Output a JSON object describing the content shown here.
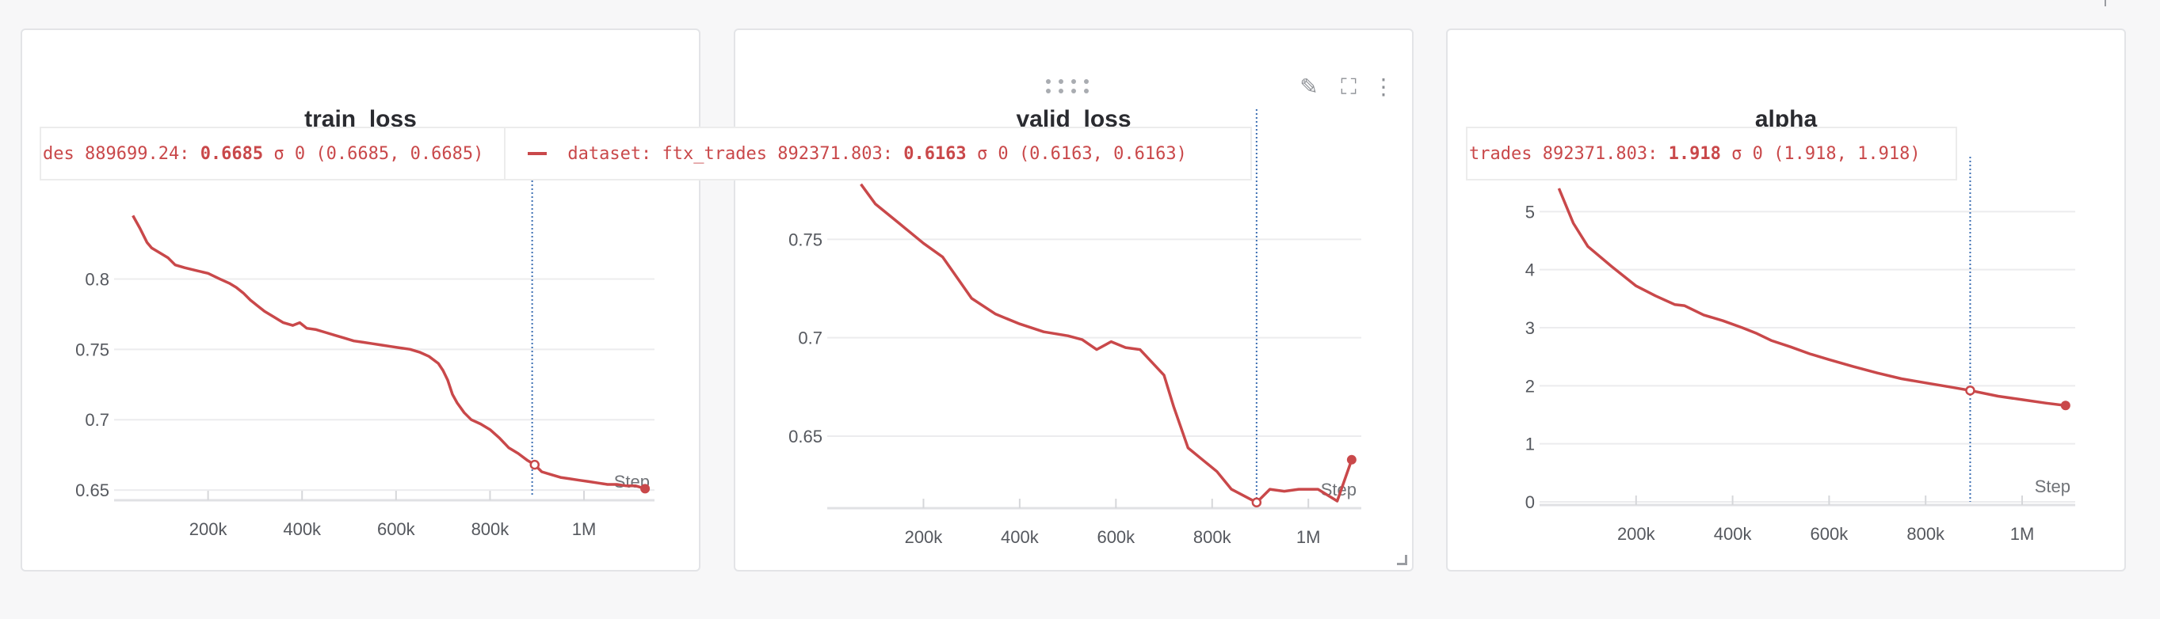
{
  "chart_data": [
    {
      "type": "line",
      "title": "train_loss",
      "xlabel": "Step",
      "xlim": [
        0,
        1150000
      ],
      "ylim": [
        0.645,
        0.87
      ],
      "x_ticks": [
        200000,
        400000,
        600000,
        800000,
        1000000
      ],
      "x_tick_labels": [
        "200k",
        "400k",
        "600k",
        "800k",
        "1M"
      ],
      "y_ticks": [
        0.65,
        0.7,
        0.75,
        0.8
      ],
      "y_tick_labels": [
        "0.65",
        "0.7",
        "0.75",
        "0.8"
      ],
      "grid": true,
      "color": "#c9484a",
      "hover_x": 889699,
      "series": [
        {
          "x": [
            40000,
            55000,
            70000,
            80000,
            100000,
            115000,
            130000,
            150000,
            175000,
            200000,
            225000,
            245000,
            260000,
            275000,
            290000,
            305000,
            320000,
            340000,
            360000,
            380000,
            395000,
            410000,
            430000,
            450000,
            470000,
            490000,
            510000,
            530000,
            550000,
            570000,
            590000,
            610000,
            630000,
            650000,
            670000,
            690000,
            700000,
            710000,
            720000,
            730000,
            745000,
            760000,
            780000,
            800000,
            820000,
            840000,
            860000,
            880000,
            895000,
            910000,
            930000,
            950000,
            970000,
            990000,
            1010000,
            1030000,
            1050000,
            1070000,
            1090000,
            1110000,
            1130000
          ],
          "y": [
            0.845,
            0.836,
            0.826,
            0.822,
            0.818,
            0.815,
            0.81,
            0.808,
            0.806,
            0.804,
            0.8,
            0.797,
            0.794,
            0.79,
            0.785,
            0.781,
            0.777,
            0.773,
            0.769,
            0.767,
            0.769,
            0.765,
            0.764,
            0.762,
            0.76,
            0.758,
            0.756,
            0.755,
            0.754,
            0.753,
            0.752,
            0.751,
            0.75,
            0.748,
            0.745,
            0.74,
            0.735,
            0.728,
            0.718,
            0.712,
            0.705,
            0.7,
            0.697,
            0.693,
            0.687,
            0.68,
            0.676,
            0.671,
            0.668,
            0.663,
            0.661,
            0.659,
            0.658,
            0.657,
            0.656,
            0.655,
            0.654,
            0.654,
            0.653,
            0.653,
            0.651
          ]
        }
      ]
    },
    {
      "type": "line",
      "title": "valid_loss",
      "xlabel": "Step",
      "xlim": [
        0,
        1110000
      ],
      "ylim": [
        0.615,
        0.8
      ],
      "x_ticks": [
        200000,
        400000,
        600000,
        800000,
        1000000
      ],
      "x_tick_labels": [
        "200k",
        "400k",
        "600k",
        "800k",
        "1M"
      ],
      "y_ticks": [
        0.65,
        0.7,
        0.75
      ],
      "y_tick_labels": [
        "0.65",
        "0.7",
        "0.75"
      ],
      "grid": true,
      "color": "#c9484a",
      "hover_x": 892371,
      "series": [
        {
          "name": "dataset: ftx_trades",
          "x": [
            70000,
            100000,
            150000,
            200000,
            240000,
            300000,
            350000,
            400000,
            450000,
            500000,
            530000,
            560000,
            590000,
            620000,
            650000,
            700000,
            720000,
            750000,
            780000,
            810000,
            840000,
            892371,
            920000,
            950000,
            980000,
            1020000,
            1060000,
            1090000
          ],
          "y": [
            0.778,
            0.768,
            0.758,
            0.748,
            0.741,
            0.72,
            0.712,
            0.707,
            0.703,
            0.701,
            0.699,
            0.694,
            0.698,
            0.695,
            0.694,
            0.681,
            0.665,
            0.644,
            0.638,
            0.632,
            0.623,
            0.6163,
            0.623,
            0.622,
            0.623,
            0.623,
            0.617,
            0.638
          ]
        }
      ]
    },
    {
      "type": "line",
      "title": "alpha",
      "xlabel": "Step",
      "xlim": [
        0,
        1110000
      ],
      "ylim": [
        0,
        5.4
      ],
      "x_ticks": [
        200000,
        400000,
        600000,
        800000,
        1000000
      ],
      "x_tick_labels": [
        "200k",
        "400k",
        "600k",
        "800k",
        "1M"
      ],
      "y_ticks": [
        0,
        1,
        2,
        3,
        4,
        5
      ],
      "y_tick_labels": [
        "0",
        "1",
        "2",
        "3",
        "4",
        "5"
      ],
      "grid": true,
      "color": "#c9484a",
      "hover_x": 892371,
      "series": [
        {
          "x": [
            40000,
            70000,
            100000,
            150000,
            200000,
            240000,
            280000,
            300000,
            340000,
            380000,
            420000,
            450000,
            480000,
            520000,
            560000,
            600000,
            650000,
            700000,
            750000,
            800000,
            850000,
            892371,
            950000,
            1000000,
            1050000,
            1090000
          ],
          "y": [
            5.4,
            4.8,
            4.4,
            4.05,
            3.72,
            3.55,
            3.4,
            3.38,
            3.22,
            3.12,
            3.0,
            2.9,
            2.78,
            2.67,
            2.55,
            2.45,
            2.33,
            2.22,
            2.12,
            2.05,
            1.98,
            1.918,
            1.82,
            1.76,
            1.7,
            1.66
          ]
        }
      ]
    }
  ],
  "panels": [
    {
      "title": "train_loss",
      "step_label": "Step",
      "tooltip": {
        "prefix": "des 889699.24:",
        "value": "0.6685",
        "sigma": "σ 0",
        "range": "(0.6685, 0.6685)",
        "series_prefix": "dataset: ftx_trades 892371.803:",
        "series_value": "0.6163",
        "series_sigma": "σ 0",
        "series_range": "(0.6163, 0.6163)"
      }
    },
    {
      "title": "valid_loss",
      "step_label": "Step",
      "icons": [
        "drag-handle-icon",
        "pencil-icon",
        "fullscreen-icon",
        "more-vertical-icon",
        "resize-corner-icon"
      ]
    },
    {
      "title": "alpha",
      "step_label": "Step",
      "tooltip": {
        "prefix": "trades 892371.803:",
        "value": "1.918",
        "sigma": "σ 0",
        "range": "(1.918, 1.918)"
      }
    }
  ],
  "icon_glyphs": {
    "pencil": "✎",
    "fullscreen": "⛶",
    "more": "⋮"
  }
}
